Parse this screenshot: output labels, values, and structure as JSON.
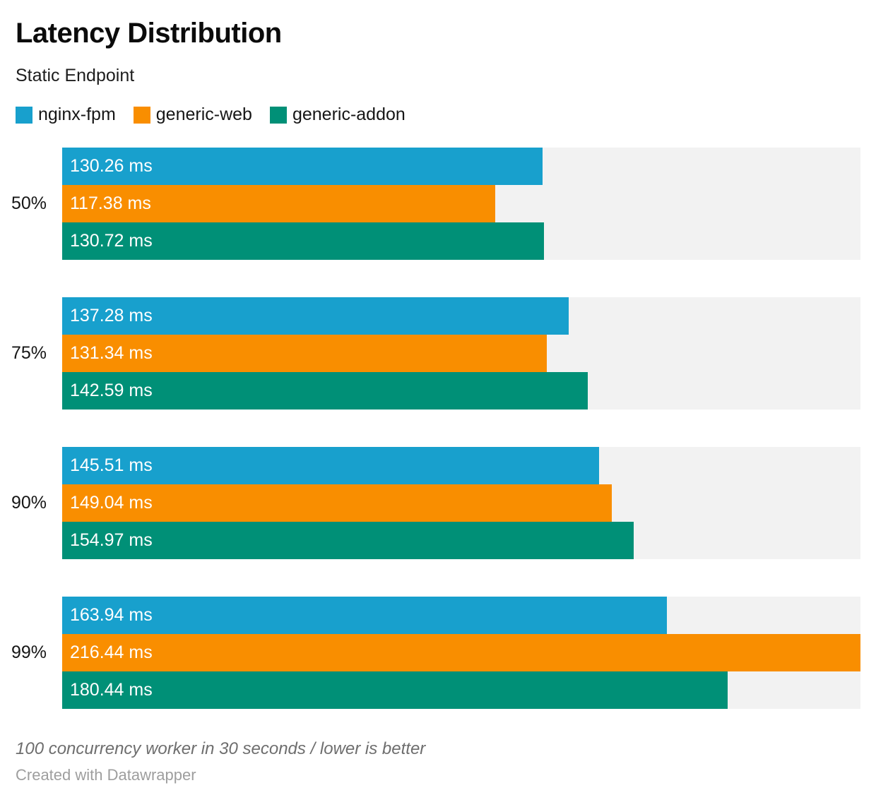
{
  "header": {
    "title": "Latency Distribution",
    "subtitle": "Static Endpoint"
  },
  "legend": [
    {
      "label": "nginx-fpm",
      "color": "#18a0cd"
    },
    {
      "label": "generic-web",
      "color": "#f98e00"
    },
    {
      "label": "generic-addon",
      "color": "#009077"
    }
  ],
  "chart_data": {
    "type": "bar",
    "orientation": "horizontal",
    "title": "Latency Distribution",
    "subtitle": "Static Endpoint",
    "unit": "ms",
    "categories": [
      "50%",
      "75%",
      "90%",
      "99%"
    ],
    "series": [
      {
        "name": "nginx-fpm",
        "color": "#18a0cd",
        "values": [
          130.26,
          137.28,
          145.51,
          163.94
        ]
      },
      {
        "name": "generic-web",
        "color": "#f98e00",
        "values": [
          117.38,
          131.34,
          149.04,
          216.44
        ]
      },
      {
        "name": "generic-addon",
        "color": "#009077",
        "values": [
          130.72,
          142.59,
          154.97,
          180.44
        ]
      }
    ],
    "xlim": [
      0,
      216.44
    ],
    "value_labels": [
      [
        "130.26 ms",
        "117.38 ms",
        "130.72 ms"
      ],
      [
        "137.28 ms",
        "131.34 ms",
        "142.59 ms"
      ],
      [
        "145.51 ms",
        "149.04 ms",
        "154.97 ms"
      ],
      [
        "163.94 ms",
        "216.44 ms",
        "180.44 ms"
      ]
    ],
    "grid": false,
    "legend_position": "top",
    "track_color": "#f2f2f2"
  },
  "footer": {
    "note": "100 concurrency worker in 30 seconds / lower is better",
    "byline": "Created with Datawrapper"
  }
}
